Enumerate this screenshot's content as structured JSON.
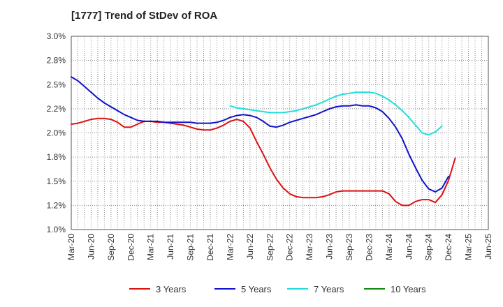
{
  "chart_data": {
    "type": "line",
    "title": "[1777]  Trend of StDev of ROA",
    "xlabel": "",
    "ylabel": "",
    "ylim": [
      1.0,
      3.0
    ],
    "y_ticks": [
      "1.0%",
      "1.2%",
      "1.5%",
      "1.8%",
      "2.0%",
      "2.2%",
      "2.5%",
      "2.8%",
      "3.0%"
    ],
    "x_ticks": [
      "Mar-20",
      "Jun-20",
      "Sep-20",
      "Dec-20",
      "Mar-21",
      "Jun-21",
      "Sep-21",
      "Dec-21",
      "Mar-22",
      "Jun-22",
      "Sep-22",
      "Dec-22",
      "Mar-23",
      "Jun-23",
      "Sep-23",
      "Dec-23",
      "Mar-24",
      "Jun-24",
      "Sep-24",
      "Dec-24",
      "Mar-25",
      "Jun-25"
    ],
    "grid": true,
    "grid_style": "dotted",
    "legend_position": "bottom",
    "series": [
      {
        "name": "3 Years",
        "color": "#dd1111",
        "values": [
          2.09,
          2.1,
          2.12,
          2.14,
          2.15,
          2.15,
          2.14,
          2.11,
          2.06,
          2.06,
          2.09,
          2.12,
          2.12,
          2.11,
          2.11,
          2.1,
          2.09,
          2.08,
          2.06,
          2.04,
          2.03,
          2.03,
          2.05,
          2.08,
          2.12,
          2.14,
          2.12,
          2.05,
          1.91,
          1.78,
          1.64,
          1.52,
          1.43,
          1.37,
          1.34,
          1.33,
          1.33,
          1.33,
          1.34,
          1.36,
          1.39,
          1.4,
          1.4,
          1.4,
          1.4,
          1.4,
          1.4,
          1.4,
          1.37,
          1.29,
          1.25,
          1.25,
          1.29,
          1.31,
          1.31,
          1.28,
          1.36,
          1.51,
          1.74
        ]
      },
      {
        "name": "5 Years",
        "color": "#1111cc",
        "values": [
          2.58,
          2.54,
          2.48,
          2.42,
          2.36,
          2.31,
          2.27,
          2.23,
          2.19,
          2.16,
          2.13,
          2.12,
          2.12,
          2.12,
          2.11,
          2.11,
          2.11,
          2.11,
          2.11,
          2.1,
          2.1,
          2.1,
          2.11,
          2.13,
          2.16,
          2.18,
          2.19,
          2.18,
          2.16,
          2.12,
          2.07,
          2.06,
          2.08,
          2.11,
          2.13,
          2.15,
          2.17,
          2.19,
          2.22,
          2.25,
          2.27,
          2.28,
          2.28,
          2.29,
          2.28,
          2.28,
          2.26,
          2.22,
          2.15,
          2.06,
          1.94,
          1.78,
          1.64,
          1.51,
          1.42,
          1.39,
          1.43,
          1.55
        ]
      },
      {
        "name": "7 Years",
        "color": "#22dddd",
        "start_index": 24,
        "values": [
          2.28,
          2.26,
          2.25,
          2.24,
          2.23,
          2.22,
          2.21,
          2.21,
          2.21,
          2.22,
          2.23,
          2.25,
          2.27,
          2.29,
          2.32,
          2.35,
          2.38,
          2.4,
          2.41,
          2.42,
          2.42,
          2.42,
          2.41,
          2.38,
          2.34,
          2.29,
          2.23,
          2.16,
          2.08,
          2.0,
          1.98,
          2.01,
          2.07
        ]
      },
      {
        "name": "10 Years",
        "color": "#118811",
        "values": []
      }
    ]
  }
}
